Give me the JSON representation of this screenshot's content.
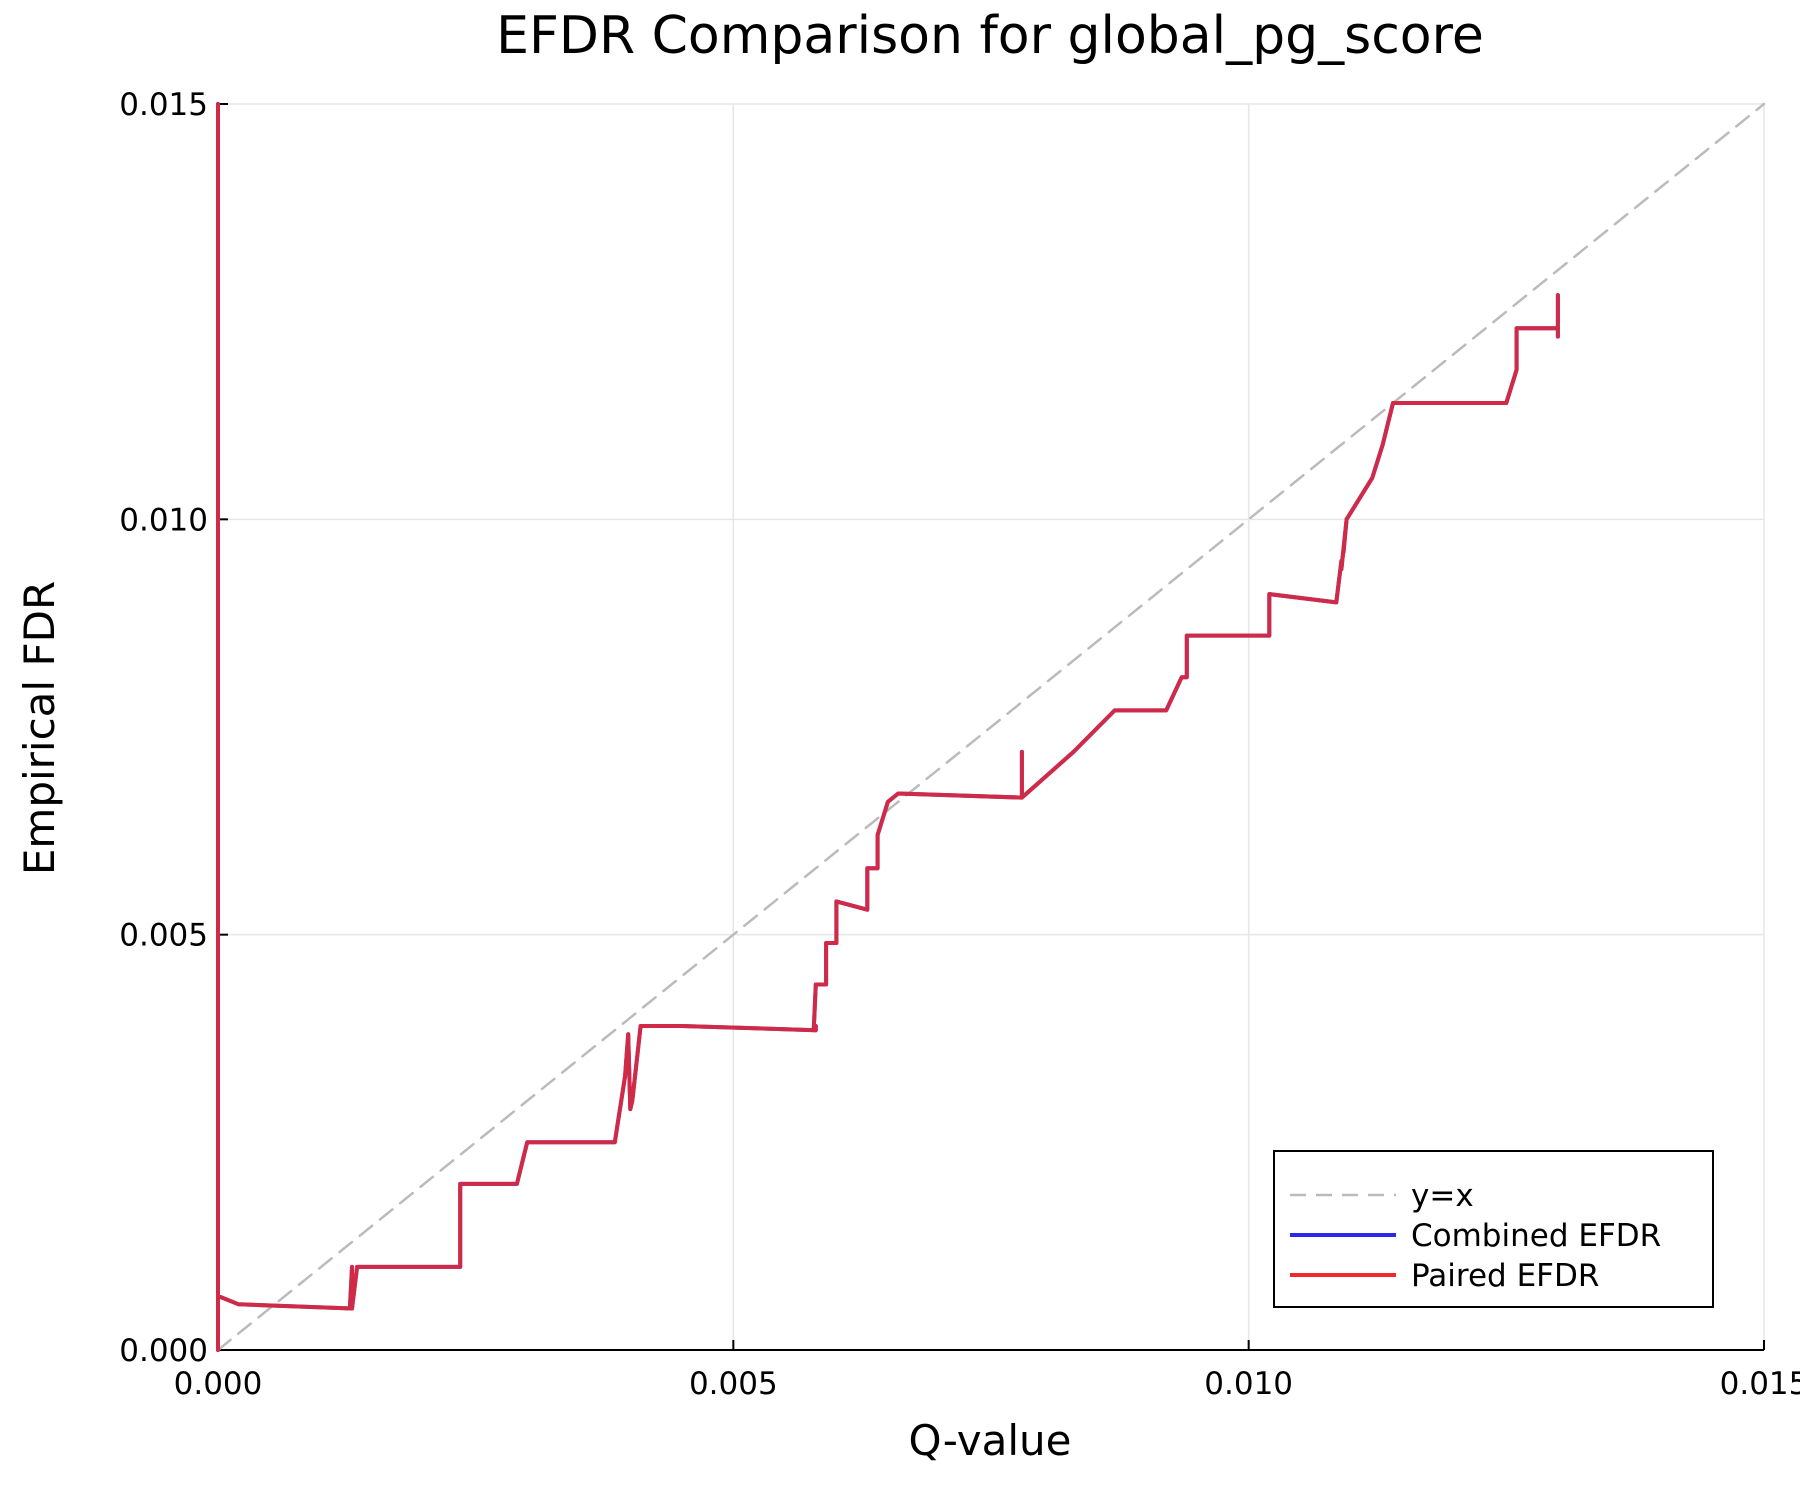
{
  "chart_data": {
    "type": "line",
    "title": "EFDR Comparison for global_pg_score",
    "xlabel": "Q-value",
    "ylabel": "Empirical FDR",
    "xlim": [
      0,
      0.015
    ],
    "ylim": [
      0,
      0.015
    ],
    "xticks": [
      {
        "value": 0,
        "label": "0.000"
      },
      {
        "value": 0.005,
        "label": "0.005"
      },
      {
        "value": 0.01,
        "label": "0.010"
      },
      {
        "value": 0.015,
        "label": "0.015"
      }
    ],
    "yticks": [
      {
        "value": 0,
        "label": "0.000"
      },
      {
        "value": 0.005,
        "label": "0.005"
      },
      {
        "value": 0.01,
        "label": "0.010"
      },
      {
        "value": 0.015,
        "label": "0.015"
      }
    ],
    "grid": true,
    "legend_position": "bottom-right",
    "series": [
      {
        "name": "y=x",
        "color": "#bbbbbb",
        "dashed": true,
        "x": [
          0,
          0.015
        ],
        "y": [
          0,
          0.015
        ]
      },
      {
        "name": "Combined EFDR",
        "color": "#2a2ae6",
        "dashed": false,
        "x": [
          0,
          0,
          0,
          0.0002,
          0.0013,
          0.0013,
          0.00128,
          0.0013,
          0.00135,
          0.0018,
          0.00235,
          0.00235,
          0.0029,
          0.003,
          0.0033,
          0.00385,
          0.00395,
          0.00398,
          0.004,
          0.00402,
          0.0041,
          0.0045,
          0.0058,
          0.0058,
          0.00578,
          0.0058,
          0.0059,
          0.0059,
          0.006,
          0.006,
          0.0063,
          0.0063,
          0.0064,
          0.0064,
          0.0065,
          0.0066,
          0.0078,
          0.0078,
          0.0078,
          0.0083,
          0.0087,
          0.0092,
          0.00935,
          0.00935,
          0.0094,
          0.0094,
          0.0102,
          0.0102,
          0.01085,
          0.01085,
          0.0109,
          0.0109,
          0.01095,
          0.01092,
          0.01095,
          0.0112,
          0.0112,
          0.0113,
          0.0113,
          0.0114,
          0.0125,
          0.0126,
          0.0126,
          0.0127,
          0.013,
          0.013,
          0.013
        ],
        "y": [
          0.015,
          0,
          0.00065,
          0.00055,
          0.0005,
          0.001,
          0.0005,
          0.0005,
          0.001,
          0.001,
          0.001,
          0.002,
          0.002,
          0.0025,
          0.0025,
          0.0025,
          0.0033,
          0.0038,
          0.0029,
          0.003,
          0.0039,
          0.0039,
          0.00385,
          0.0039,
          0.00385,
          0.0044,
          0.0044,
          0.0049,
          0.0049,
          0.0054,
          0.0053,
          0.0058,
          0.0058,
          0.0062,
          0.0066,
          0.0067,
          0.00665,
          0.0072,
          0.00665,
          0.0072,
          0.0077,
          0.0077,
          0.0081,
          0.0081,
          0.0081,
          0.0086,
          0.0086,
          0.0091,
          0.009,
          0.009,
          0.0095,
          0.0094,
          0.01,
          0.0096,
          0.01,
          0.0105,
          0.0105,
          0.0109,
          0.0109,
          0.0114,
          0.0114,
          0.0118,
          0.0123,
          0.0123,
          0.0123,
          0.0127,
          0.0122
        ]
      },
      {
        "name": "Paired EFDR",
        "color": "#ee2a2a",
        "dashed": false,
        "x": [
          0,
          0,
          0,
          0.0002,
          0.0013,
          0.0013,
          0.00128,
          0.0013,
          0.00135,
          0.0018,
          0.00235,
          0.00235,
          0.0029,
          0.003,
          0.0033,
          0.00385,
          0.00395,
          0.00398,
          0.004,
          0.00402,
          0.0041,
          0.0045,
          0.0058,
          0.0058,
          0.00578,
          0.0058,
          0.0059,
          0.0059,
          0.006,
          0.006,
          0.0063,
          0.0063,
          0.0064,
          0.0064,
          0.0065,
          0.0066,
          0.0078,
          0.0078,
          0.0078,
          0.0083,
          0.0087,
          0.0092,
          0.00935,
          0.00935,
          0.0094,
          0.0094,
          0.0102,
          0.0102,
          0.01085,
          0.01085,
          0.0109,
          0.0109,
          0.01095,
          0.01092,
          0.01095,
          0.0112,
          0.0112,
          0.0113,
          0.0113,
          0.0114,
          0.0125,
          0.0126,
          0.0126,
          0.0127,
          0.013,
          0.013,
          0.013
        ],
        "y": [
          0.015,
          0,
          0.00065,
          0.00055,
          0.0005,
          0.001,
          0.0005,
          0.0005,
          0.001,
          0.001,
          0.001,
          0.002,
          0.002,
          0.0025,
          0.0025,
          0.0025,
          0.0033,
          0.0038,
          0.0029,
          0.003,
          0.0039,
          0.0039,
          0.00385,
          0.0039,
          0.00385,
          0.0044,
          0.0044,
          0.0049,
          0.0049,
          0.0054,
          0.0053,
          0.0058,
          0.0058,
          0.0062,
          0.0066,
          0.0067,
          0.00665,
          0.0072,
          0.00665,
          0.0072,
          0.0077,
          0.0077,
          0.0081,
          0.0081,
          0.0081,
          0.0086,
          0.0086,
          0.0091,
          0.009,
          0.009,
          0.0095,
          0.0094,
          0.01,
          0.0096,
          0.01,
          0.0105,
          0.0105,
          0.0109,
          0.0109,
          0.0114,
          0.0114,
          0.0118,
          0.0123,
          0.0123,
          0.0123,
          0.0127,
          0.0122
        ]
      }
    ]
  }
}
